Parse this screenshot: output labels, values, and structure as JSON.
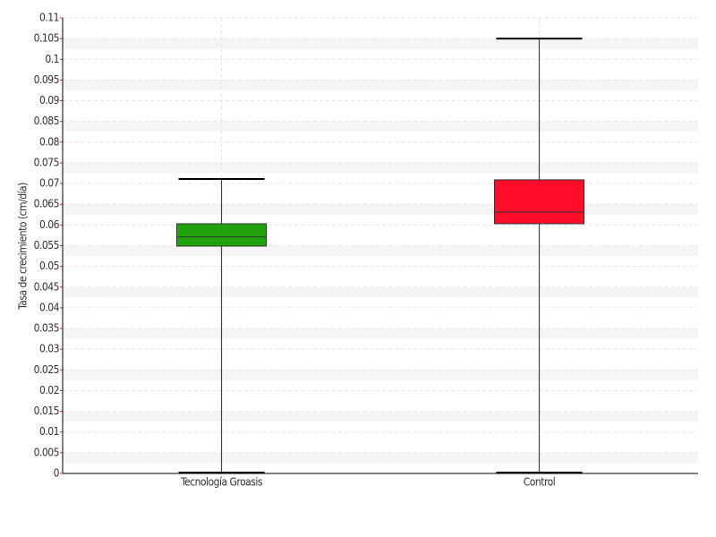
{
  "chart_data": {
    "type": "box",
    "ylabel": "Tasa de crecimiento (cm/día)",
    "categories": [
      "Tecnología Groasis",
      "Control"
    ],
    "boxes": [
      {
        "min": 0,
        "q1": 0.0549,
        "median": 0.0571,
        "q3": 0.0603,
        "max": 0.0711,
        "color": "#22a30e"
      },
      {
        "min": 0,
        "q1": 0.0603,
        "median": 0.0631,
        "q3": 0.0709,
        "max": 0.105,
        "color": "#ff0d2a"
      }
    ],
    "ylim": [
      0,
      0.11
    ],
    "yticks": [
      0,
      0.005,
      0.01,
      0.015,
      0.02,
      0.025,
      0.03,
      0.035,
      0.04,
      0.045,
      0.05,
      0.055,
      0.06,
      0.065,
      0.07,
      0.075,
      0.08,
      0.085,
      0.09,
      0.095,
      0.1,
      0.105,
      0.11
    ],
    "grid": true
  }
}
